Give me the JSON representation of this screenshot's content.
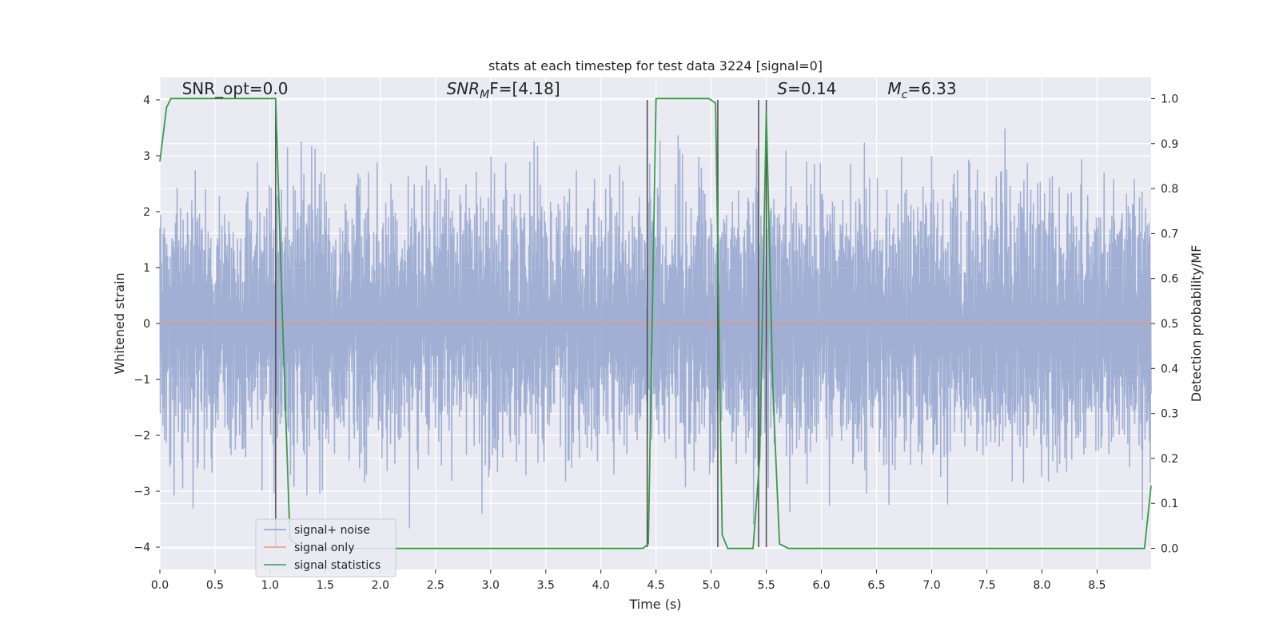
{
  "chart_data": {
    "type": "line",
    "title": "stats at each timestep for test data 3224 [signal=0]",
    "xlabel": "Time (s)",
    "ylabel": "Whitened strain",
    "y2label": "Detection probability/MF",
    "xlim": [
      0,
      8.99
    ],
    "ylim": [
      -4.4,
      4.4
    ],
    "y2lim": [
      -0.047,
      1.047
    ],
    "x_ticks": [
      0.0,
      0.5,
      1.0,
      1.5,
      2.0,
      2.5,
      3.0,
      3.5,
      4.0,
      4.5,
      5.0,
      5.5,
      6.0,
      6.5,
      7.0,
      7.5,
      8.0,
      8.5
    ],
    "x_tick_labels": [
      "0.0",
      "0.5",
      "1.0",
      "1.5",
      "2.0",
      "2.5",
      "3.0",
      "3.5",
      "4.0",
      "4.5",
      "5.0",
      "5.5",
      "6.0",
      "6.5",
      "7.0",
      "7.5",
      "8.0",
      "8.5"
    ],
    "y_ticks": [
      -4,
      -3,
      -2,
      -1,
      0,
      1,
      2,
      3,
      4
    ],
    "y_tick_labels": [
      "−4",
      "−3",
      "−2",
      "−1",
      "0",
      "1",
      "2",
      "3",
      "4"
    ],
    "y2_ticks": [
      0.0,
      0.1,
      0.2,
      0.3,
      0.4,
      0.5,
      0.6,
      0.7,
      0.8,
      0.9,
      1.0
    ],
    "y2_tick_labels": [
      "0.0",
      "0.1",
      "0.2",
      "0.3",
      "0.4",
      "0.5",
      "0.6",
      "0.7",
      "0.8",
      "0.9",
      "1.0"
    ],
    "grid": true,
    "annotations": {
      "snr_opt": {
        "text": "SNR_opt=0.0",
        "x": 0.2,
        "y": 4.1
      },
      "snr_mf": {
        "pre": "SNR",
        "sub": "M",
        "post": "F=[4.18]",
        "x": 2.6,
        "y": 4.1
      },
      "s": {
        "pre": "S",
        "post": "=0.14",
        "x": 5.6,
        "y": 4.1
      },
      "mc": {
        "pre": "M",
        "sub": "c",
        "post": "=6.33",
        "x": 6.6,
        "y": 4.1
      }
    },
    "vlines": [
      {
        "x": 1.05,
        "ymin": -4.0,
        "ymax": 4.0
      },
      {
        "x": 4.42,
        "ymin": -4.0,
        "ymax": 4.0
      },
      {
        "x": 5.06,
        "ymin": -4.0,
        "ymax": 4.0
      },
      {
        "x": 5.43,
        "ymin": -4.0,
        "ymax": 4.0
      },
      {
        "x": 5.5,
        "ymin": -4.0,
        "ymax": 4.0
      }
    ],
    "noise": {
      "samples": 2300,
      "core_amplitude": 1.6,
      "peak_amplitude": 3.6,
      "seed": 3224
    },
    "series": [
      {
        "name": "signal+ noise",
        "axis": "left",
        "color": "#8da0cb",
        "kind": "noise"
      },
      {
        "name": "signal only",
        "axis": "left",
        "color": "#e9967a",
        "x": [
          0.0,
          8.99
        ],
        "y": [
          0.0,
          0.0
        ]
      },
      {
        "name": "signal statistics",
        "axis": "right",
        "color": "#3a9a4a",
        "x": [
          0.0,
          0.06,
          0.1,
          0.2,
          1.0,
          1.05,
          1.12,
          1.18,
          1.3,
          4.3,
          4.38,
          4.43,
          4.5,
          4.98,
          5.04,
          5.07,
          5.1,
          5.15,
          5.2,
          5.38,
          5.44,
          5.5,
          5.56,
          5.62,
          5.7,
          8.86,
          8.93,
          8.99
        ],
        "y": [
          0.86,
          0.98,
          1.0,
          1.0,
          1.0,
          1.0,
          0.45,
          0.02,
          0.0,
          0.0,
          0.0,
          0.01,
          1.0,
          1.0,
          0.99,
          0.5,
          0.03,
          0.0,
          0.0,
          0.0,
          0.2,
          0.97,
          0.35,
          0.01,
          0.0,
          0.0,
          0.0,
          0.14
        ]
      }
    ],
    "legend": {
      "position": "lower-left",
      "entries": [
        {
          "label": "signal+ noise",
          "color": "#8da0cb"
        },
        {
          "label": "signal only",
          "color": "#e9967a"
        },
        {
          "label": "signal statistics",
          "color": "#3a9a4a"
        }
      ]
    }
  }
}
